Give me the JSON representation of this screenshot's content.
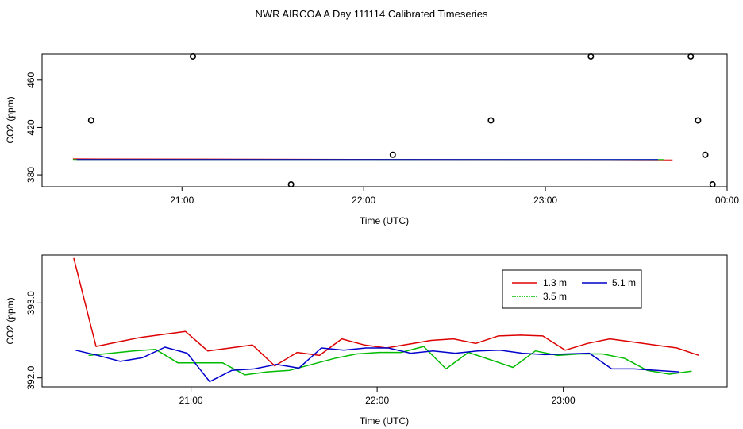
{
  "title": "NWR AIRCOA A  Day 111114  Calibrated Timeseries",
  "chart_data": [
    {
      "type": "scatter",
      "name": "top-panel",
      "xlabel": "Time (UTC)",
      "ylabel": "CO2 (ppm)",
      "xlim": [
        20.23,
        24.0
      ],
      "ylim": [
        370,
        482
      ],
      "xticks": [
        {
          "value": 21.0,
          "label": "21:00"
        },
        {
          "value": 22.0,
          "label": "22:00"
        },
        {
          "value": 23.0,
          "label": "23:00"
        },
        {
          "value": 24.0,
          "label": "00:00"
        }
      ],
      "yticks": [
        {
          "value": 380,
          "label": "380"
        },
        {
          "value": 420,
          "label": "420"
        },
        {
          "value": 460,
          "label": "460"
        }
      ],
      "points": [
        {
          "x": 20.5,
          "y": 426
        },
        {
          "x": 21.06,
          "y": 480
        },
        {
          "x": 21.6,
          "y": 372
        },
        {
          "x": 22.16,
          "y": 397
        },
        {
          "x": 22.7,
          "y": 426
        },
        {
          "x": 23.25,
          "y": 480
        },
        {
          "x": 23.8,
          "y": 480
        },
        {
          "x": 23.84,
          "y": 426
        },
        {
          "x": 23.88,
          "y": 397
        },
        {
          "x": 23.92,
          "y": 372
        }
      ],
      "series": [
        {
          "name": "1.3 m",
          "color": "#dd0000",
          "x": [
            20.4,
            23.7
          ],
          "values": [
            393.2,
            392.3
          ]
        },
        {
          "name": "3.5 m",
          "color": "#00bb00",
          "x": [
            20.4,
            23.65
          ],
          "values": [
            392.6,
            392.6
          ]
        },
        {
          "name": "5.1 m",
          "color": "#0000cc",
          "x": [
            20.42,
            23.62
          ],
          "values": [
            392.6,
            392.6
          ]
        }
      ]
    },
    {
      "type": "line",
      "name": "bottom-panel",
      "xlabel": "Time (UTC)",
      "ylabel": "CO2 (ppm)",
      "xlim": [
        20.2,
        23.88
      ],
      "ylim": [
        391.88,
        393.64
      ],
      "xticks": [
        {
          "value": 21.0,
          "label": "21:00"
        },
        {
          "value": 22.0,
          "label": "22:00"
        },
        {
          "value": 23.0,
          "label": "23:00"
        }
      ],
      "yticks": [
        {
          "value": 392.0,
          "label": "392.0"
        },
        {
          "value": 393.0,
          "label": "393.0"
        }
      ],
      "series": [
        {
          "name": "1.3 m",
          "color": "#dd0000",
          "x": [
            20.37,
            20.49,
            20.61,
            20.73,
            20.85,
            20.97,
            21.09,
            21.21,
            21.33,
            21.45,
            21.57,
            21.69,
            21.81,
            21.93,
            22.05,
            22.17,
            22.29,
            22.41,
            22.53,
            22.65,
            22.77,
            22.89,
            23.01,
            23.13,
            23.25,
            23.37,
            23.49,
            23.61,
            23.73
          ],
          "values": [
            393.6,
            392.42,
            392.48,
            392.54,
            392.58,
            392.62,
            392.36,
            392.4,
            392.44,
            392.16,
            392.34,
            392.3,
            392.52,
            392.44,
            392.4,
            392.45,
            392.5,
            392.52,
            392.46,
            392.56,
            392.57,
            392.56,
            392.37,
            392.46,
            392.52,
            392.48,
            392.44,
            392.4,
            392.3
          ]
        },
        {
          "name": "3.5 m",
          "color": "#00bb00",
          "x": [
            20.45,
            20.57,
            20.69,
            20.81,
            20.93,
            21.05,
            21.17,
            21.29,
            21.41,
            21.53,
            21.65,
            21.77,
            21.89,
            22.01,
            22.13,
            22.25,
            22.37,
            22.49,
            22.61,
            22.73,
            22.85,
            22.97,
            23.09,
            23.21,
            23.33,
            23.45,
            23.57,
            23.69
          ],
          "values": [
            392.3,
            392.33,
            392.36,
            392.38,
            392.2,
            392.2,
            392.2,
            392.04,
            392.08,
            392.1,
            392.18,
            392.26,
            392.32,
            392.34,
            392.34,
            392.42,
            392.12,
            392.34,
            392.24,
            392.14,
            392.36,
            392.3,
            392.32,
            392.32,
            392.26,
            392.1,
            392.05,
            392.09
          ]
        },
        {
          "name": "5.1 m",
          "color": "#0000cc",
          "x": [
            20.38,
            20.5,
            20.62,
            20.74,
            20.86,
            20.98,
            21.1,
            21.22,
            21.34,
            21.46,
            21.58,
            21.7,
            21.82,
            21.94,
            22.06,
            22.18,
            22.3,
            22.42,
            22.54,
            22.66,
            22.78,
            22.9,
            23.02,
            23.14,
            23.26,
            23.38,
            23.5,
            23.62
          ],
          "values": [
            392.37,
            392.3,
            392.22,
            392.27,
            392.41,
            392.33,
            391.95,
            392.1,
            392.12,
            392.18,
            392.13,
            392.4,
            392.37,
            392.4,
            392.4,
            392.33,
            392.36,
            392.33,
            392.36,
            392.37,
            392.33,
            392.31,
            392.32,
            392.33,
            392.12,
            392.12,
            392.1,
            392.08
          ]
        }
      ],
      "legend": {
        "position": "top-right",
        "entries": [
          {
            "label": "1.3 m",
            "color": "#dd0000"
          },
          {
            "label": "3.5 m",
            "color": "#00bb00"
          },
          {
            "label": "5.1 m",
            "color": "#0000cc"
          }
        ]
      }
    }
  ]
}
